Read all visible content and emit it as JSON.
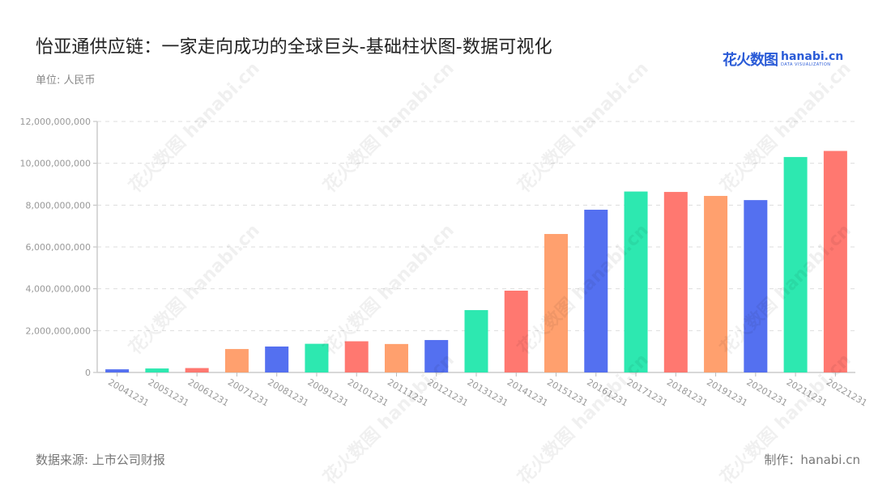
{
  "header": {
    "title": "怡亚通供应链：一家走向成功的全球巨头-基础柱状图-数据可视化",
    "unit": "单位: 人民币"
  },
  "logo": {
    "cn": "花火数图",
    "en": "hanabi.cn",
    "sub": "DATA VISUALIZATION"
  },
  "footer": {
    "source": "数据来源: 上市公司财报",
    "credit": "制作：hanabi.cn"
  },
  "watermark": "花火数图 hanabi.cn",
  "colors": [
    "#5470f0",
    "#2de8b0",
    "#ff7870",
    "#ffa06e"
  ],
  "chart_data": {
    "type": "bar",
    "title": "怡亚通供应链：一家走向成功的全球巨头-基础柱状图-数据可视化",
    "xlabel": "",
    "ylabel": "单位: 人民币",
    "ylim": [
      0,
      12000000000
    ],
    "yticks": [
      0,
      2000000000,
      4000000000,
      6000000000,
      8000000000,
      10000000000,
      12000000000
    ],
    "ytick_labels": [
      "0",
      "2,000,000,000",
      "4,000,000,000",
      "6,000,000,000",
      "8,000,000,000",
      "10,000,000,000",
      "12,000,000,000"
    ],
    "grid": "horizontal dashed",
    "legend": "none",
    "categories": [
      "20041231",
      "20051231",
      "20061231",
      "20071231",
      "20081231",
      "20091231",
      "20101231",
      "20111231",
      "20121231",
      "20131231",
      "20141231",
      "20151231",
      "20161231",
      "20171231",
      "20181231",
      "20191231",
      "20201231",
      "20211231",
      "20221231"
    ],
    "values": [
      150000000,
      190000000,
      210000000,
      1120000000,
      1240000000,
      1370000000,
      1490000000,
      1360000000,
      1550000000,
      2980000000,
      3910000000,
      6620000000,
      7780000000,
      8650000000,
      8630000000,
      8440000000,
      8240000000,
      10300000000,
      10590000000
    ],
    "bar_colors": [
      "#5470f0",
      "#2de8b0",
      "#ff7870",
      "#ffa06e",
      "#5470f0",
      "#2de8b0",
      "#ff7870",
      "#ffa06e",
      "#5470f0",
      "#2de8b0",
      "#ff7870",
      "#ffa06e",
      "#5470f0",
      "#2de8b0",
      "#ff7870",
      "#ffa06e",
      "#5470f0",
      "#2de8b0",
      "#ff7870"
    ]
  }
}
